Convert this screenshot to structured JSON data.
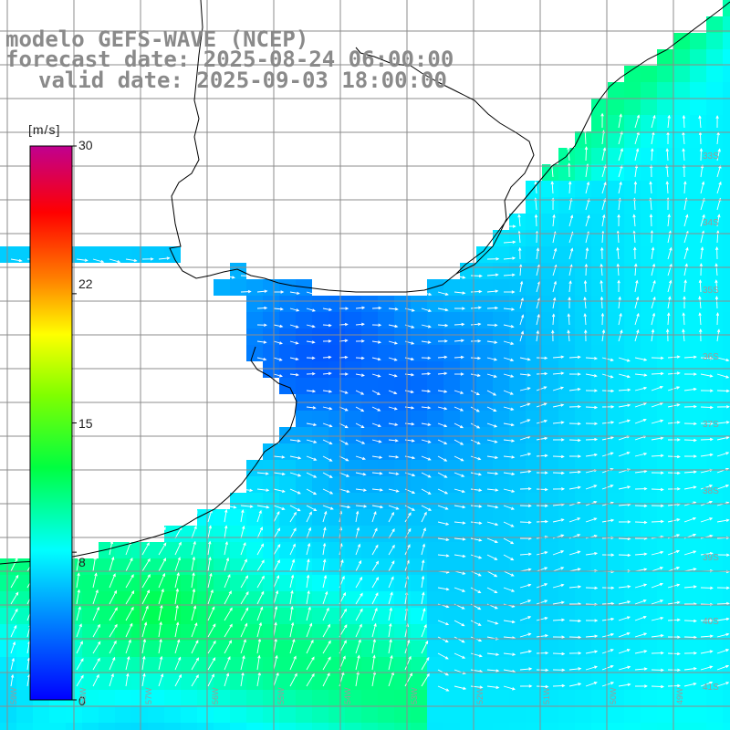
{
  "title": {
    "line1": "modelo GEFS-WAVE (NCEP)",
    "line2": "forecast date: 2025-08-24 06:00:00",
    "line3": "valid date: 2025-09-03 18:00:00"
  },
  "colorbar": {
    "unit": "[m/s]",
    "ticks": [
      "30",
      "22",
      "15",
      "8",
      "0"
    ],
    "tick_values": [
      30,
      22,
      15,
      8,
      0
    ],
    "min": 0,
    "max": 30,
    "colors": [
      "#0000ff",
      "#00c8ff",
      "#00ffff",
      "#00ff00",
      "#ffff00",
      "#ff8000",
      "#ff0000",
      "#c00090"
    ]
  },
  "map": {
    "background": "#ffffff",
    "grid_color": "#8c8c8c",
    "coast_color": "#000000",
    "arrow_color": "#ffffff",
    "lat_labels": [
      "33S",
      "34S",
      "35S",
      "36S",
      "37S",
      "38S",
      "39S",
      "40S",
      "41S"
    ],
    "lon_labels": [
      "59W",
      "58W",
      "57W",
      "56W",
      "55W",
      "54W",
      "53W",
      "52W",
      "51W",
      "50W",
      "49W"
    ]
  }
}
